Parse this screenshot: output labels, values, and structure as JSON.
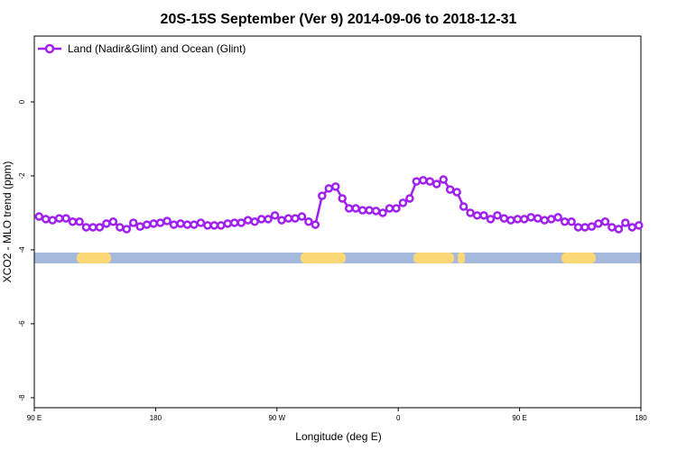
{
  "chart_data": {
    "type": "line",
    "title": "20S-15S September (Ver 9)   2014-09-06 to 2018-12-31",
    "x_label": "Longitude (deg E)",
    "y_label": "XCO2 - MLO trend (ppm)",
    "legend_position": "top-left",
    "x": [
      93.5,
      98.5,
      103.5,
      108.5,
      113.5,
      118.5,
      123.5,
      128.5,
      133.5,
      138.5,
      143.5,
      148.5,
      153.5,
      158.5,
      163.5,
      168.5,
      173.5,
      178.5,
      183.5,
      188.5,
      193.5,
      198.5,
      203.5,
      208.5,
      213.5,
      218.5,
      223.5,
      228.5,
      233.5,
      238.5,
      243.5,
      248.5,
      253.5,
      258.5,
      263.5,
      268.5,
      273.5,
      278.5,
      283.5,
      288.5,
      293.5,
      298.5,
      303.5,
      308.5,
      313.5,
      318.5,
      323.5,
      328.5,
      333.5,
      338.5,
      343.5,
      348.5,
      353.5,
      358.5,
      363.5,
      368.5,
      373.5,
      378.5,
      383.5,
      388.5,
      393.5,
      398.5,
      403.5,
      408.5,
      413.5,
      418.5,
      423.5,
      428.5,
      433.5,
      438.5,
      443.5,
      448.5,
      453.5,
      458.5,
      463.5,
      468.5,
      473.5,
      478.5,
      483.5,
      488.5,
      493.5,
      498.5,
      503.5,
      508.5,
      513.5,
      518.5,
      523.5,
      528.5,
      533.5,
      538.5
    ],
    "series": [
      {
        "name": "Land (Nadir&Glint) and Ocean (Glint)",
        "color": "#a020f0",
        "values": [
          -3.1,
          -3.17,
          -3.2,
          -3.15,
          -3.15,
          -3.24,
          -3.24,
          -3.39,
          -3.39,
          -3.39,
          -3.29,
          -3.24,
          -3.39,
          -3.44,
          -3.27,
          -3.37,
          -3.32,
          -3.29,
          -3.27,
          -3.22,
          -3.32,
          -3.29,
          -3.32,
          -3.32,
          -3.27,
          -3.34,
          -3.34,
          -3.34,
          -3.29,
          -3.27,
          -3.27,
          -3.2,
          -3.24,
          -3.17,
          -3.17,
          -3.07,
          -3.2,
          -3.15,
          -3.15,
          -3.1,
          -3.24,
          -3.32,
          -2.54,
          -2.34,
          -2.29,
          -2.61,
          -2.88,
          -2.88,
          -2.93,
          -2.93,
          -2.95,
          -3.0,
          -2.88,
          -2.88,
          -2.73,
          -2.61,
          -2.15,
          -2.12,
          -2.15,
          -2.22,
          -2.1,
          -2.37,
          -2.44,
          -2.83,
          -3.0,
          -3.07,
          -3.07,
          -3.17,
          -3.07,
          -3.15,
          -3.2,
          -3.17,
          -3.17,
          -3.12,
          -3.15,
          -3.2,
          -3.17,
          -3.12,
          -3.24,
          -3.24,
          -3.39,
          -3.39,
          -3.37,
          -3.29,
          -3.24,
          -3.39,
          -3.44,
          -3.27,
          -3.39,
          -3.34
        ]
      }
    ],
    "xlim": [
      90,
      540
    ],
    "xticks": [
      {
        "value": 90,
        "label": "90 E"
      },
      180,
      {
        "value": 270,
        "label": "90 W"
      },
      {
        "value": 360,
        "label": "0"
      },
      {
        "value": 450,
        "label": "90 E"
      },
      {
        "value": 540,
        "label": "180"
      }
    ],
    "ylim": [
      -8.27,
      1.78
    ],
    "yticks": [
      0,
      -2,
      -4,
      -6,
      -8
    ]
  }
}
